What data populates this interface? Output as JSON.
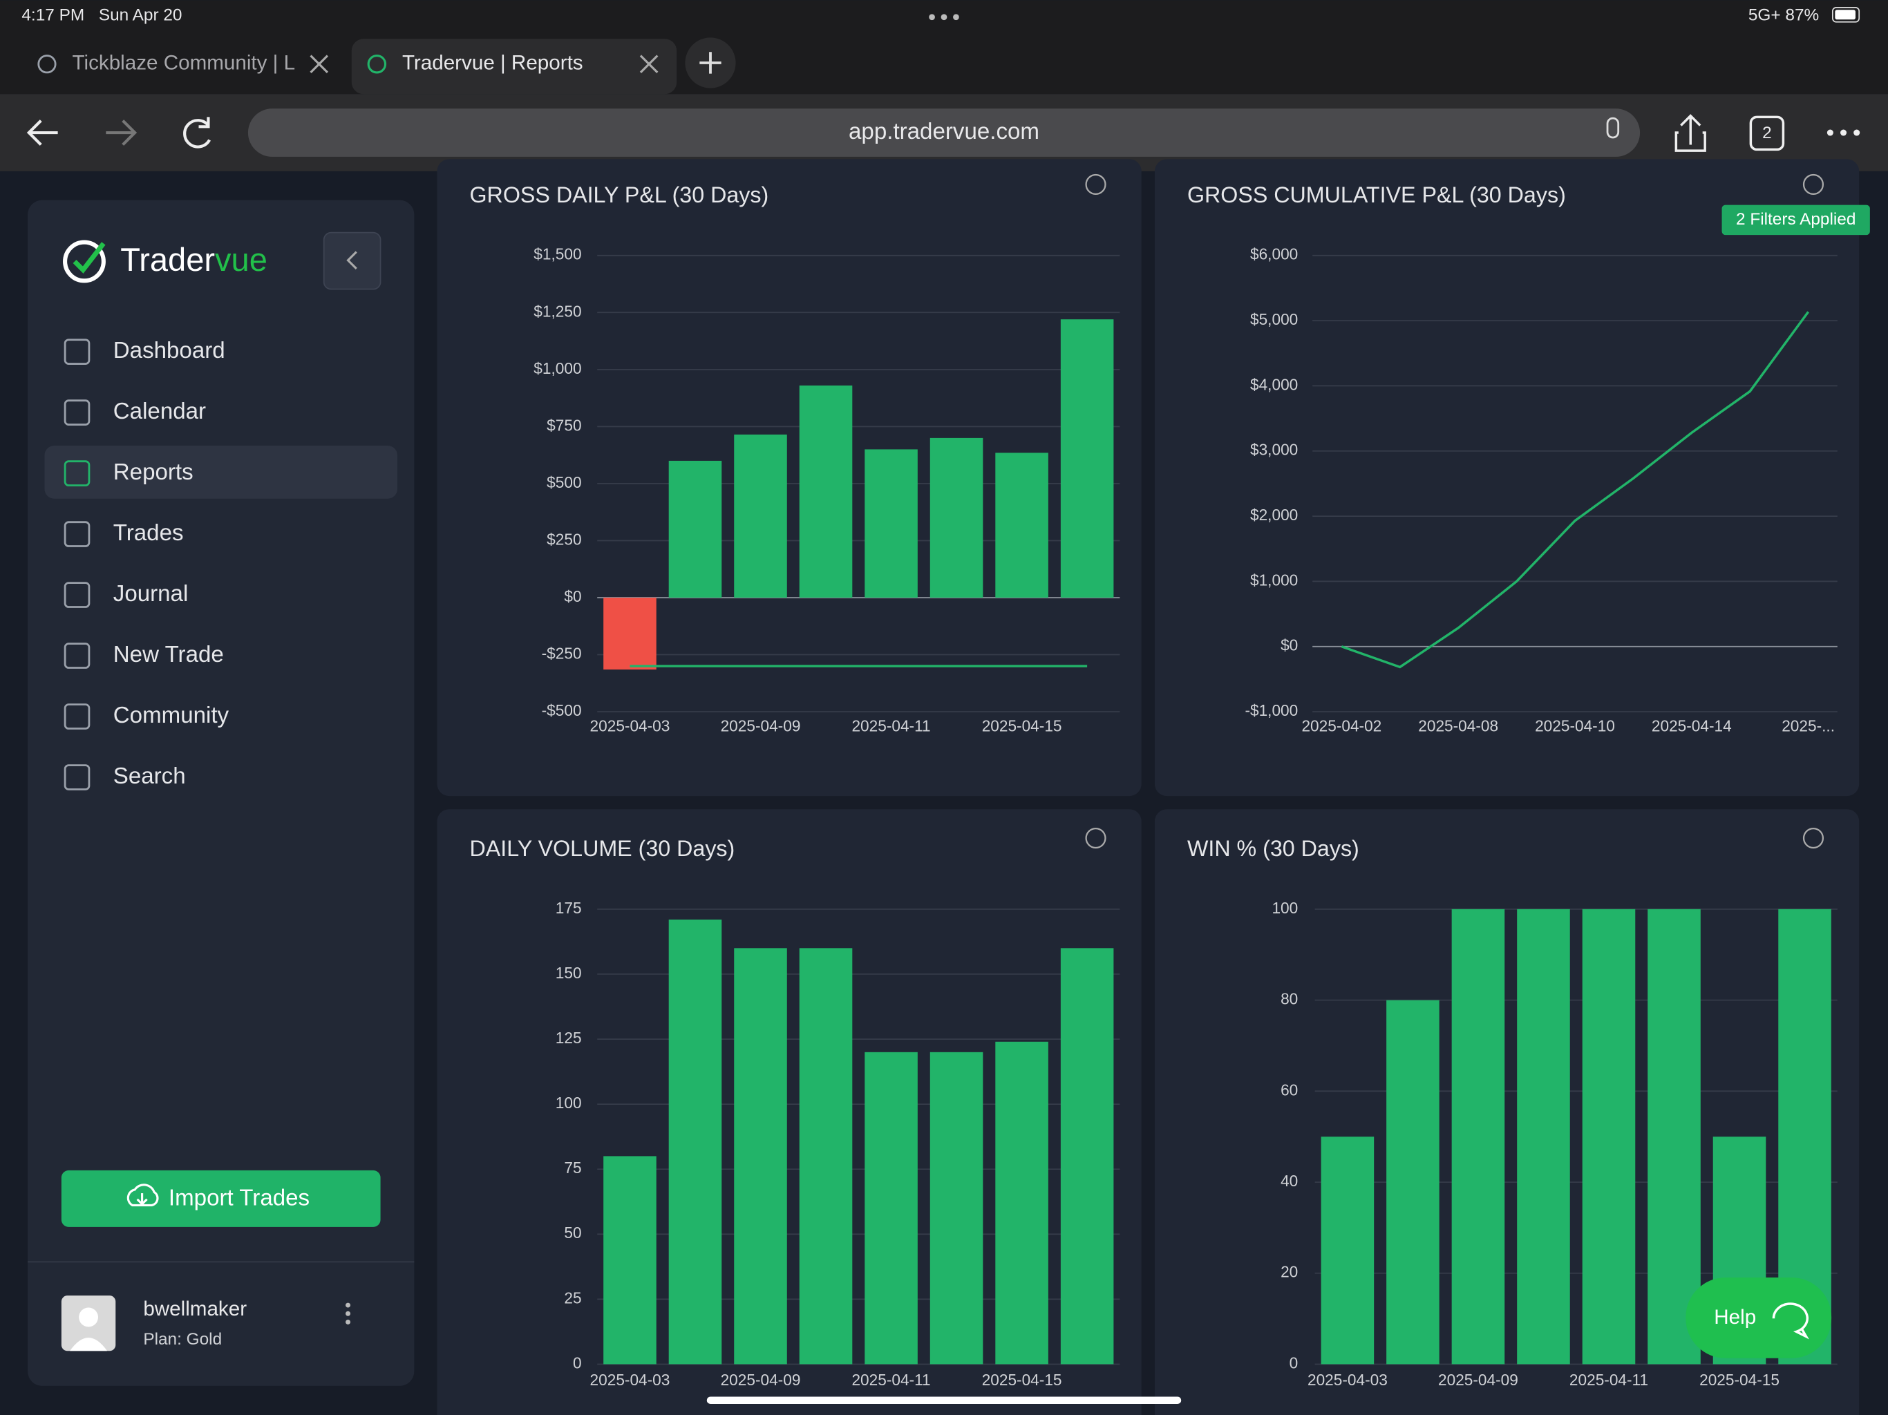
{
  "status_bar": {
    "time": "4:17 PM",
    "date": "Sun Apr 20",
    "signal": "5G+ 87%"
  },
  "tabs": [
    {
      "title": "Tickblaze Community | L"
    },
    {
      "title": "Tradervue | Reports"
    }
  ],
  "address_bar": {
    "url": "app.tradervue.com",
    "tab_count": "2"
  },
  "sidebar": {
    "logo": [
      "Trader",
      "vue"
    ],
    "nav": [
      "Dashboard",
      "Calendar",
      "Reports",
      "Trades",
      "Journal",
      "New Trade",
      "Community",
      "Search"
    ],
    "import_button": "Import Trades",
    "user": {
      "name": "bwellmaker",
      "plan": "Plan: Gold"
    }
  },
  "filters_badge": "2 Filters Applied",
  "help_button": "Help",
  "chart_data": [
    {
      "type": "bar",
      "title": "GROSS DAILY P&L (30 Days)",
      "categories": [
        "2025-04-03",
        null,
        "2025-04-09",
        null,
        "2025-04-11",
        null,
        "2025-04-15",
        null
      ],
      "series": [
        {
          "type": "bar",
          "values": [
            -315,
            600,
            715,
            930,
            650,
            700,
            635,
            1220
          ],
          "colors": [
            "#ef5046",
            "#22b469",
            "#22b469",
            "#22b469",
            "#22b469",
            "#22b469",
            "#22b469",
            "#22b469"
          ]
        },
        {
          "type": "line",
          "color": "#22b469",
          "values": [
            -300,
            -300,
            -300,
            -300,
            -300,
            -300,
            -300,
            -300
          ]
        }
      ],
      "ylim": [
        -500,
        1500
      ],
      "yticks": [
        {
          "value": -500,
          "label": "-$500"
        },
        {
          "value": -250,
          "label": "-$250"
        },
        {
          "value": 0,
          "label": "$0"
        },
        {
          "value": 250,
          "label": "$250"
        },
        {
          "value": 500,
          "label": "$500"
        },
        {
          "value": 750,
          "label": "$750"
        },
        {
          "value": 1000,
          "label": "$1,000"
        },
        {
          "value": 1250,
          "label": "$1,250"
        },
        {
          "value": 1500,
          "label": "$1,500"
        }
      ],
      "grid": true
    },
    {
      "type": "line",
      "title": "GROSS CUMULATIVE P&L (30 Days)",
      "categories": [
        "2025-04-02",
        null,
        "2025-04-08",
        null,
        "2025-04-10",
        null,
        "2025-04-14",
        null,
        "2025-..."
      ],
      "values": [
        0,
        -315,
        285,
        1000,
        1930,
        2580,
        3280,
        3915,
        5135
      ],
      "color": "#22b469",
      "ylim": [
        -1000,
        6000
      ],
      "yticks": [
        {
          "value": -1000,
          "label": "-$1,000"
        },
        {
          "value": 0,
          "label": "$0"
        },
        {
          "value": 1000,
          "label": "$1,000"
        },
        {
          "value": 2000,
          "label": "$2,000"
        },
        {
          "value": 3000,
          "label": "$3,000"
        },
        {
          "value": 4000,
          "label": "$4,000"
        },
        {
          "value": 5000,
          "label": "$5,000"
        },
        {
          "value": 6000,
          "label": "$6,000"
        }
      ],
      "grid": true
    },
    {
      "type": "bar",
      "title": "DAILY VOLUME (30 Days)",
      "categories": [
        "2025-04-03",
        null,
        "2025-04-09",
        null,
        "2025-04-11",
        null,
        "2025-04-15",
        null
      ],
      "values": [
        80,
        171,
        160,
        160,
        120,
        120,
        124,
        160
      ],
      "color": "#22b469",
      "ylim": [
        0,
        175
      ],
      "yticks": [
        0,
        25,
        50,
        75,
        100,
        125,
        150,
        175
      ],
      "grid": true
    },
    {
      "type": "bar",
      "title": "WIN % (30 Days)",
      "categories": [
        "2025-04-03",
        null,
        "2025-04-09",
        null,
        "2025-04-11",
        null,
        "2025-04-15",
        null
      ],
      "values": [
        50,
        80,
        100,
        100,
        100,
        100,
        50,
        100
      ],
      "color": "#22b469",
      "ylim": [
        0,
        100
      ],
      "yticks": [
        0,
        20,
        40,
        60,
        80,
        100
      ],
      "grid": true
    }
  ]
}
